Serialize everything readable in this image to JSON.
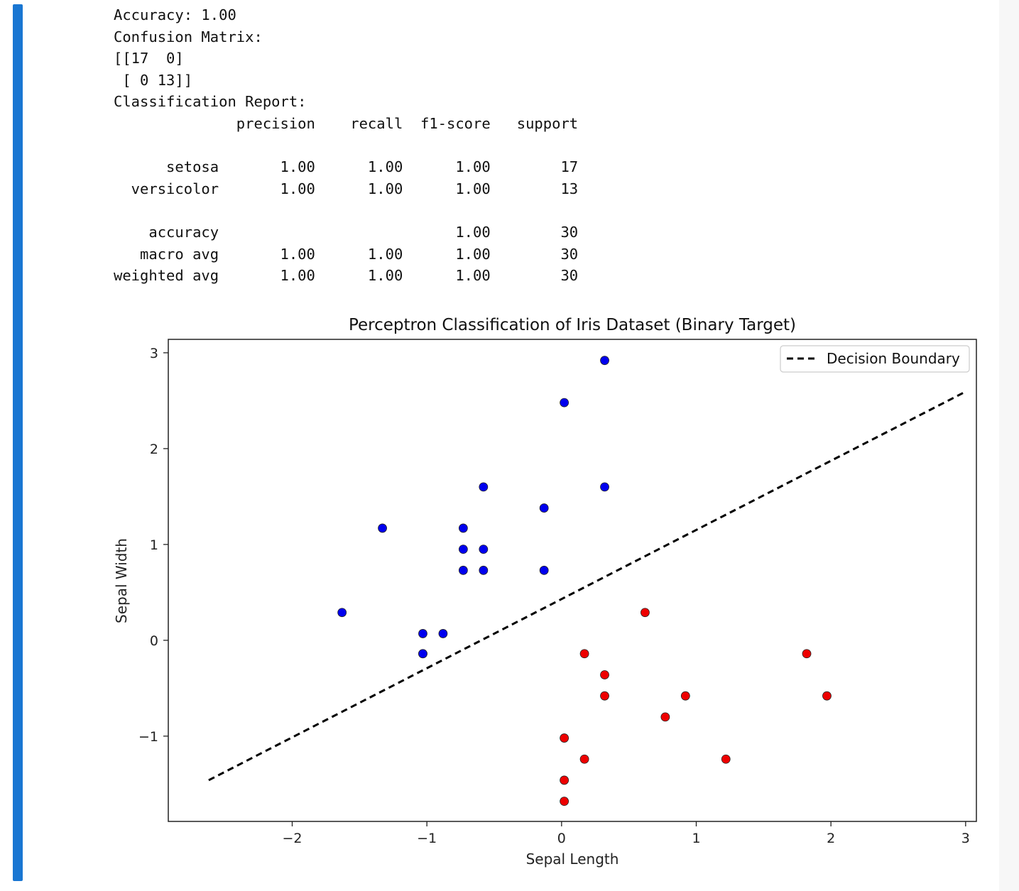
{
  "output_lines": [
    "Accuracy: 1.00",
    "Confusion Matrix:",
    "[[17  0]",
    " [ 0 13]]",
    "Classification Report:",
    "              precision    recall  f1-score   support",
    "",
    "      setosa       1.00      1.00      1.00        17",
    "  versicolor       1.00      1.00      1.00        13",
    "",
    "    accuracy                           1.00        30",
    "   macro avg       1.00      1.00      1.00        30",
    "weighted avg       1.00      1.00      1.00        30"
  ],
  "chart_data": {
    "type": "scatter",
    "title": "Perceptron Classification of Iris Dataset (Binary Target)",
    "xlabel": "Sepal Length",
    "ylabel": "Sepal Width",
    "xlim": [
      -2.92,
      3.08
    ],
    "ylim": [
      -1.89,
      3.14
    ],
    "xticks": [
      -2,
      -1,
      0,
      1,
      2,
      3
    ],
    "yticks": [
      -1,
      0,
      1,
      2,
      3
    ],
    "xtick_labels": [
      "−2",
      "−1",
      "0",
      "1",
      "2",
      "3"
    ],
    "ytick_labels": [
      "−1",
      "0",
      "1",
      "2",
      "3"
    ],
    "grid": false,
    "legend": {
      "position": "top-right",
      "entries": [
        "Decision Boundary"
      ]
    },
    "colors": {
      "class_blue": "#0000ee",
      "class_red": "#ee0000",
      "boundary": "#000000",
      "accent_bar": "#1976d2"
    },
    "series": [
      {
        "color": "#0000ee",
        "points": [
          [
            0.32,
            2.92
          ],
          [
            0.02,
            2.48
          ],
          [
            -0.58,
            1.6
          ],
          [
            0.32,
            1.6
          ],
          [
            -0.13,
            1.38
          ],
          [
            -1.33,
            1.17
          ],
          [
            -0.73,
            1.17
          ],
          [
            -0.73,
            0.95
          ],
          [
            -0.58,
            0.95
          ],
          [
            -0.73,
            0.73
          ],
          [
            -0.58,
            0.73
          ],
          [
            -0.13,
            0.73
          ],
          [
            -1.63,
            0.29
          ],
          [
            -1.03,
            0.07
          ],
          [
            -0.88,
            0.07
          ],
          [
            -1.03,
            -0.14
          ],
          [
            -1.03,
            -0.14
          ]
        ]
      },
      {
        "color": "#ee0000",
        "points": [
          [
            0.62,
            0.29
          ],
          [
            0.17,
            -0.14
          ],
          [
            1.82,
            -0.14
          ],
          [
            0.32,
            -0.36
          ],
          [
            0.32,
            -0.58
          ],
          [
            0.92,
            -0.58
          ],
          [
            1.97,
            -0.58
          ],
          [
            0.77,
            -0.8
          ],
          [
            0.02,
            -1.02
          ],
          [
            0.17,
            -1.24
          ],
          [
            1.22,
            -1.24
          ],
          [
            0.02,
            -1.46
          ],
          [
            0.02,
            -1.68
          ]
        ]
      }
    ],
    "boundary": {
      "name": "Decision Boundary",
      "x": [
        -2.62,
        2.98
      ],
      "y": [
        -1.46,
        2.58
      ]
    }
  }
}
